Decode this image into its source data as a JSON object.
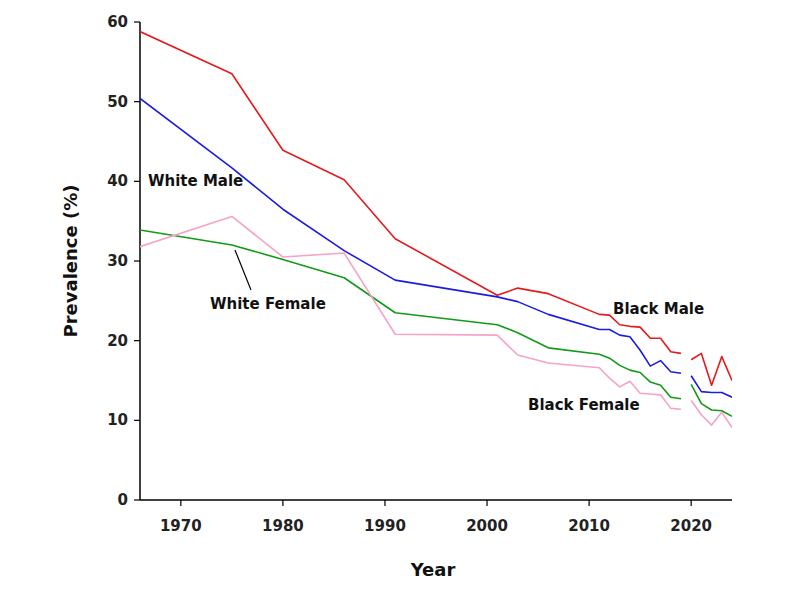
{
  "chart_data": {
    "type": "line",
    "x_label": "Year",
    "y_label": "Prevalence (%)",
    "x": [
      1966,
      1975,
      1980,
      1986,
      1991,
      2001,
      2003,
      2006,
      2011,
      2012,
      2013,
      2014,
      2015,
      2016,
      2017,
      2018,
      2019,
      2019.5,
      2020,
      2021,
      2022,
      2023,
      2024
    ],
    "series": [
      {
        "name": "Black Male",
        "color": "#e41a1c",
        "values": [
          58.8,
          53.5,
          43.9,
          40.2,
          32.8,
          25.7,
          26.6,
          25.9,
          23.3,
          23.2,
          22.0,
          21.8,
          21.7,
          20.3,
          20.3,
          18.6,
          18.4,
          null,
          17.6,
          18.4,
          14.4,
          18.0,
          15.0
        ]
      },
      {
        "name": "White Male",
        "color": "#1c1ce0",
        "values": [
          50.4,
          41.7,
          36.5,
          31.3,
          27.6,
          25.5,
          24.9,
          23.3,
          21.4,
          21.4,
          20.7,
          20.5,
          18.8,
          16.8,
          17.5,
          16.1,
          15.9,
          null,
          15.6,
          13.6,
          13.5,
          13.5,
          12.9
        ]
      },
      {
        "name": "White Female",
        "color": "#139a17",
        "values": [
          33.9,
          32.0,
          30.2,
          27.9,
          23.5,
          22.0,
          21.0,
          19.1,
          18.3,
          17.8,
          16.9,
          16.3,
          16.0,
          14.8,
          14.4,
          12.9,
          12.7,
          null,
          14.5,
          12.1,
          11.3,
          11.2,
          10.5
        ]
      },
      {
        "name": "Black Female",
        "color": "#f5a3c7",
        "values": [
          31.8,
          35.6,
          30.5,
          31.0,
          20.8,
          20.7,
          18.2,
          17.2,
          16.6,
          15.3,
          14.2,
          14.9,
          13.4,
          13.3,
          13.2,
          11.5,
          11.4,
          null,
          12.5,
          10.7,
          9.4,
          11.0,
          9.1
        ]
      }
    ],
    "annotations": [
      "Black Male",
      "White Male",
      "White Female",
      "Black Female"
    ],
    "xlim": [
      1966,
      2024
    ],
    "xticks": [
      1970,
      1980,
      1990,
      2000,
      2010,
      2020
    ],
    "ylim": [
      0,
      60
    ],
    "yticks": [
      0,
      10,
      20,
      30,
      40,
      50,
      60
    ],
    "grid": false
  }
}
